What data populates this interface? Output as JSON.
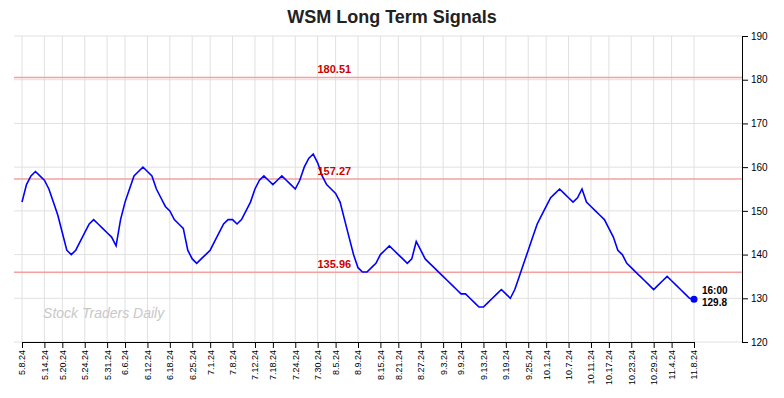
{
  "chart_data": {
    "type": "line",
    "title": "WSM Long Term Signals",
    "categories": [
      "5.8.24",
      null,
      null,
      null,
      null,
      "5.14.24",
      null,
      null,
      null,
      "5.20.24",
      null,
      null,
      null,
      null,
      "5.24.24",
      null,
      null,
      null,
      null,
      "5.31.24",
      null,
      null,
      null,
      "6.6.24",
      null,
      null,
      null,
      null,
      "6.12.24",
      null,
      null,
      null,
      null,
      "6.18.24",
      null,
      null,
      null,
      null,
      "6.25.24",
      null,
      null,
      null,
      "7.1.24",
      null,
      null,
      null,
      null,
      "7.8.24",
      null,
      null,
      null,
      null,
      "7.12.24",
      null,
      null,
      null,
      "7.18.24",
      null,
      null,
      null,
      null,
      "7.24.24",
      null,
      null,
      null,
      null,
      "7.30.24",
      null,
      null,
      null,
      "8.5.24",
      null,
      null,
      null,
      null,
      "8.9.24",
      null,
      null,
      null,
      null,
      "8.15.24",
      null,
      null,
      null,
      "8.21.24",
      null,
      null,
      null,
      null,
      "8.27.24",
      null,
      null,
      null,
      null,
      "9.3.24",
      null,
      null,
      null,
      "9.9.24",
      null,
      null,
      null,
      null,
      "9.13.24",
      null,
      null,
      null,
      null,
      "9.19.24",
      null,
      null,
      null,
      null,
      "9.25.24",
      null,
      null,
      null,
      "10.1.24",
      null,
      null,
      null,
      null,
      "10.7.24",
      null,
      null,
      null,
      null,
      "10.11.24",
      null,
      null,
      null,
      "10.17.24",
      null,
      null,
      null,
      null,
      "10.23.24",
      null,
      null,
      null,
      null,
      "10.29.24",
      null,
      null,
      null,
      "11.4.24",
      null,
      null,
      null,
      null,
      "11.8.24"
    ],
    "values": [
      152,
      156,
      158,
      159,
      158,
      157,
      155,
      152,
      149,
      145,
      141,
      140,
      141,
      143,
      145,
      147,
      148,
      147,
      146,
      145,
      144,
      142,
      148,
      152,
      155,
      158,
      159,
      160,
      159,
      158,
      155,
      153,
      151,
      150,
      148,
      147,
      146,
      141,
      139,
      138,
      139,
      140,
      141,
      143,
      145,
      147,
      148,
      148,
      147,
      148,
      150,
      152,
      155,
      157,
      158,
      157,
      156,
      157,
      158,
      157,
      156,
      155,
      157,
      160,
      162,
      163,
      161,
      158,
      156,
      155,
      154,
      152,
      148,
      144,
      140,
      137,
      136,
      136,
      137,
      138,
      140,
      141,
      142,
      141,
      140,
      139,
      138,
      139,
      143,
      141,
      139,
      138,
      137,
      136,
      135,
      134,
      133,
      132,
      131,
      131,
      130,
      129,
      128,
      128,
      129,
      130,
      131,
      132,
      131,
      130,
      132,
      135,
      138,
      141,
      144,
      147,
      149,
      151,
      153,
      154,
      155,
      154,
      153,
      152,
      153,
      155,
      152,
      151,
      150,
      149,
      148,
      146,
      144,
      141,
      140,
      138,
      137,
      136,
      135,
      134,
      133,
      132,
      133,
      134,
      135,
      134,
      133,
      132,
      131,
      130,
      129.8
    ],
    "color": "blue",
    "ylim": [
      120,
      190
    ],
    "yticks": [
      120,
      130,
      140,
      150,
      160,
      170,
      180,
      190
    ],
    "grid": true,
    "hlines": [
      {
        "value": 180.51,
        "label": "180.51",
        "color": "#f5a0a0",
        "label_color": "#cc0000"
      },
      {
        "value": 157.27,
        "label": "157.27",
        "color": "#f5a0a0",
        "label_color": "#cc0000"
      },
      {
        "value": 135.96,
        "label": "135.96",
        "color": "#f5a0a0",
        "label_color": "#cc0000"
      }
    ],
    "annotation": {
      "value": 129.8,
      "lines": [
        "16:00",
        "129.8"
      ],
      "color": "blue"
    },
    "watermark": "Stock Traders Daily"
  }
}
